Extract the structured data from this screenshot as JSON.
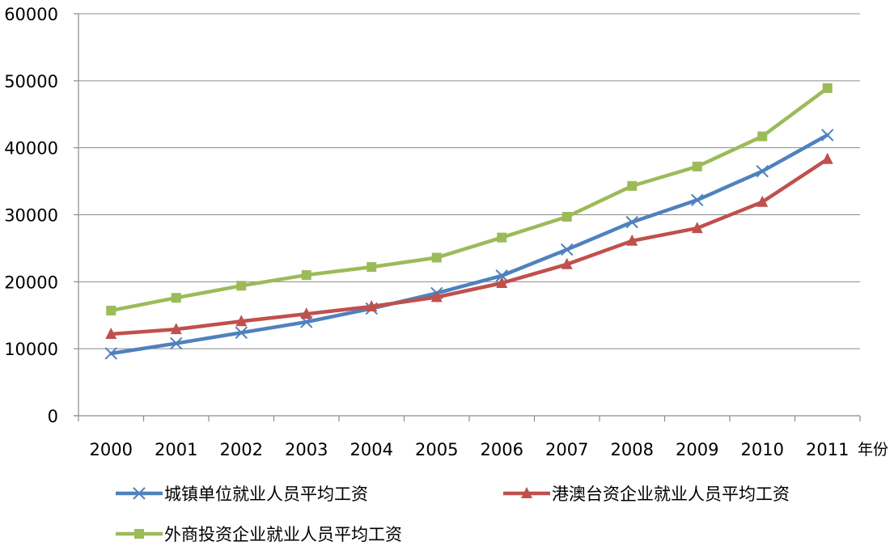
{
  "chart_data": {
    "type": "line",
    "title": "",
    "xlabel": "年份",
    "ylabel": "",
    "categories": [
      "2000",
      "2001",
      "2002",
      "2003",
      "2004",
      "2005",
      "2006",
      "2007",
      "2008",
      "2009",
      "2010",
      "2011"
    ],
    "ylim": [
      0,
      60000
    ],
    "yticks": [
      "0",
      "10000",
      "20000",
      "30000",
      "40000",
      "50000",
      "60000"
    ],
    "grid": true,
    "legend_position": "bottom",
    "series": [
      {
        "name": "城镇单位就业人员平均工资",
        "color": "#4f81bd",
        "marker": "x",
        "values": [
          9300,
          10800,
          12400,
          14000,
          16000,
          18300,
          20900,
          24800,
          28900,
          32200,
          36500,
          41900
        ]
      },
      {
        "name": "港澳台资企业就业人员平均工资",
        "color": "#c0504d",
        "marker": "triangle",
        "values": [
          12200,
          12900,
          14100,
          15200,
          16300,
          17700,
          19800,
          22600,
          26100,
          28000,
          31900,
          38300
        ]
      },
      {
        "name": "外商投资企业就业人员平均工资",
        "color": "#9bbb59",
        "marker": "square",
        "values": [
          15700,
          17600,
          19400,
          21000,
          22200,
          23600,
          26600,
          29700,
          34300,
          37200,
          41700,
          48900
        ]
      }
    ]
  }
}
